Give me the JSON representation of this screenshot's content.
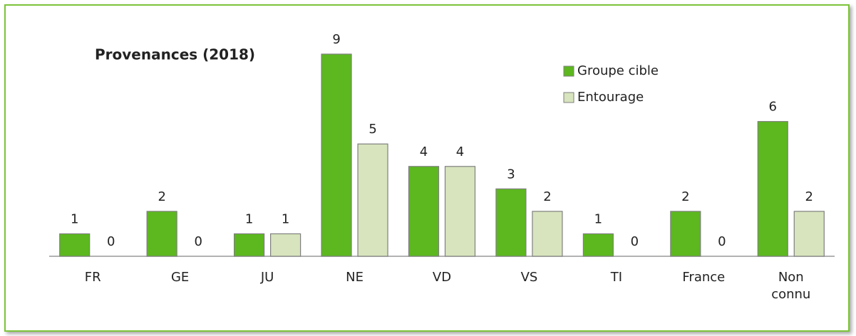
{
  "chart_data": {
    "type": "bar",
    "title": "Provenances (2018)",
    "categories": [
      "FR",
      "GE",
      "JU",
      "NE",
      "VD",
      "VS",
      "TI",
      "France",
      "Non connu"
    ],
    "series": [
      {
        "name": "Groupe cible",
        "color": "#5cb81e",
        "values": [
          1,
          2,
          1,
          9,
          4,
          3,
          1,
          2,
          6
        ]
      },
      {
        "name": "Entourage",
        "color": "#d7e4bd",
        "values": [
          0,
          0,
          1,
          5,
          4,
          2,
          0,
          0,
          2
        ]
      }
    ],
    "ylim": [
      0,
      9
    ],
    "legend": "top-right"
  }
}
